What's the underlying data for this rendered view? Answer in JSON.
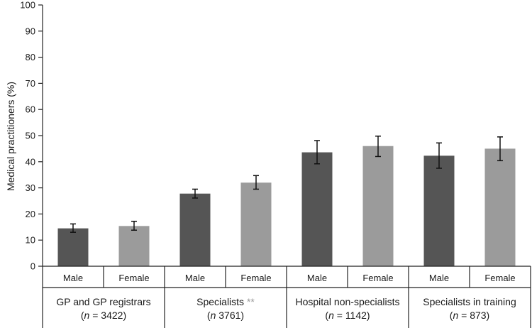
{
  "chart_data": {
    "type": "bar",
    "ylabel": "Medical practitioners (%)",
    "ylim": [
      0,
      100
    ],
    "yticks": [
      0,
      10,
      20,
      30,
      40,
      50,
      60,
      70,
      80,
      90,
      100
    ],
    "grid": false,
    "colors": {
      "Male": "#555555",
      "Female": "#9b9b9b"
    },
    "groups": [
      {
        "line1": "GP and GP registrars",
        "n_prefix": "(",
        "n_italic": "n",
        "n_suffix": " = 3422)",
        "marker": "",
        "bars": [
          {
            "label": "Male",
            "value": 14.5,
            "err_low": 13.0,
            "err_high": 16.2
          },
          {
            "label": "Female",
            "value": 15.4,
            "err_low": 13.8,
            "err_high": 17.2
          }
        ]
      },
      {
        "line1": "Specialists",
        "n_prefix": "(",
        "n_italic": "n",
        "n_suffix": " 3761)",
        "marker": "**",
        "bars": [
          {
            "label": "Male",
            "value": 27.8,
            "err_low": 26.1,
            "err_high": 29.5
          },
          {
            "label": "Female",
            "value": 32.0,
            "err_low": 29.5,
            "err_high": 34.7
          }
        ]
      },
      {
        "line1": "Hospital non-specialists",
        "n_prefix": "(",
        "n_italic": "n",
        "n_suffix": " = 1142)",
        "marker": "",
        "bars": [
          {
            "label": "Male",
            "value": 43.6,
            "err_low": 39.2,
            "err_high": 48.1
          },
          {
            "label": "Female",
            "value": 46.0,
            "err_low": 42.0,
            "err_high": 49.8
          }
        ]
      },
      {
        "line1": "Specialists in training",
        "n_prefix": "(",
        "n_italic": "n",
        "n_suffix": " = 873)",
        "marker": "",
        "bars": [
          {
            "label": "Male",
            "value": 42.3,
            "err_low": 37.5,
            "err_high": 47.2
          },
          {
            "label": "Female",
            "value": 45.0,
            "err_low": 40.4,
            "err_high": 49.5
          }
        ]
      }
    ]
  }
}
